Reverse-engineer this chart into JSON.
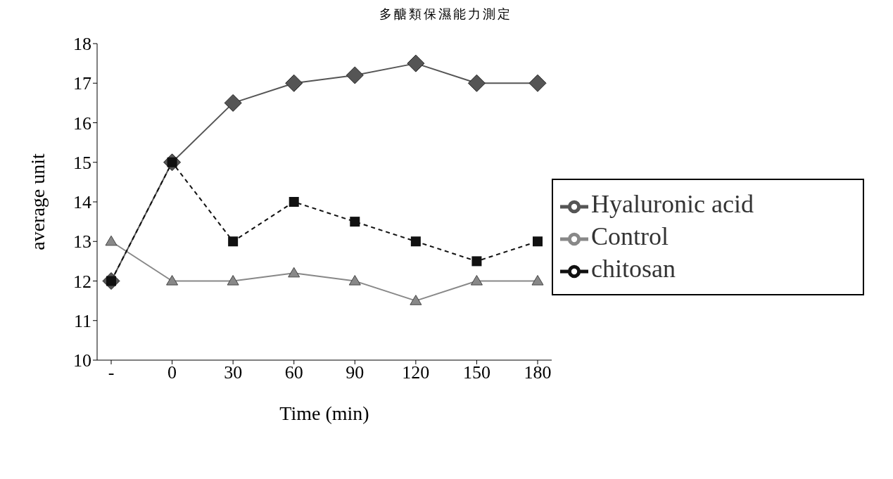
{
  "chart_data": {
    "type": "line",
    "title": "多醣類保濕能力測定",
    "xlabel": "Time (min)",
    "ylabel": "average unit",
    "categories": [
      "-",
      "0",
      "30",
      "60",
      "90",
      "120",
      "150",
      "180"
    ],
    "series": [
      {
        "name": "Hyaluronic acid",
        "color": "#555555",
        "marker": "diamond",
        "line_style": "solid",
        "values": [
          12,
          15,
          16.5,
          17,
          17.2,
          17.5,
          17,
          17
        ]
      },
      {
        "name": "Control",
        "color": "#888888",
        "marker": "triangle",
        "line_style": "solid",
        "values": [
          13,
          12,
          12,
          12.2,
          12,
          11.5,
          12,
          12
        ]
      },
      {
        "name": "chitosan",
        "color": "#111111",
        "marker": "square",
        "line_style": "dashed",
        "values": [
          12,
          15,
          13,
          14,
          13.5,
          13,
          12.5,
          13
        ]
      }
    ],
    "ylim": [
      10,
      18
    ],
    "yticks": [
      10,
      11,
      12,
      13,
      14,
      15,
      16,
      17,
      18
    ],
    "grid": false,
    "legend": "right"
  }
}
